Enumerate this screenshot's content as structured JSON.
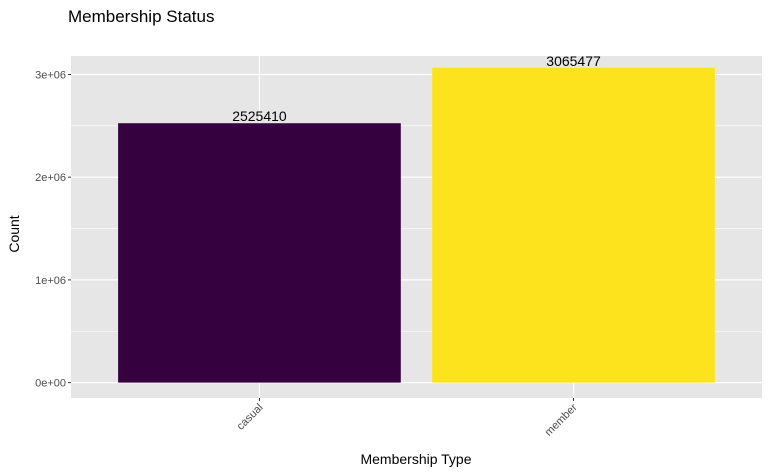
{
  "chart_data": {
    "type": "bar",
    "title": "Membership Status",
    "xlabel": "Membership Type",
    "ylabel": "Count",
    "categories": [
      "casual",
      "member"
    ],
    "values": [
      2525410,
      3065477
    ],
    "data_labels": [
      "2525410",
      "3065477"
    ],
    "bar_colors": [
      "#36013F",
      "#FDE31E"
    ],
    "ylim": [
      -150000,
      3180000
    ],
    "y_ticks": [
      0,
      1000000,
      2000000,
      3000000
    ],
    "y_tick_labels": [
      "0e+00",
      "1e+06",
      "2e+06",
      "3e+06"
    ],
    "grid": true,
    "x_tick_rotation": "45deg",
    "panel_background": "#E6E6E6",
    "grid_color": "#FFFFFF"
  }
}
